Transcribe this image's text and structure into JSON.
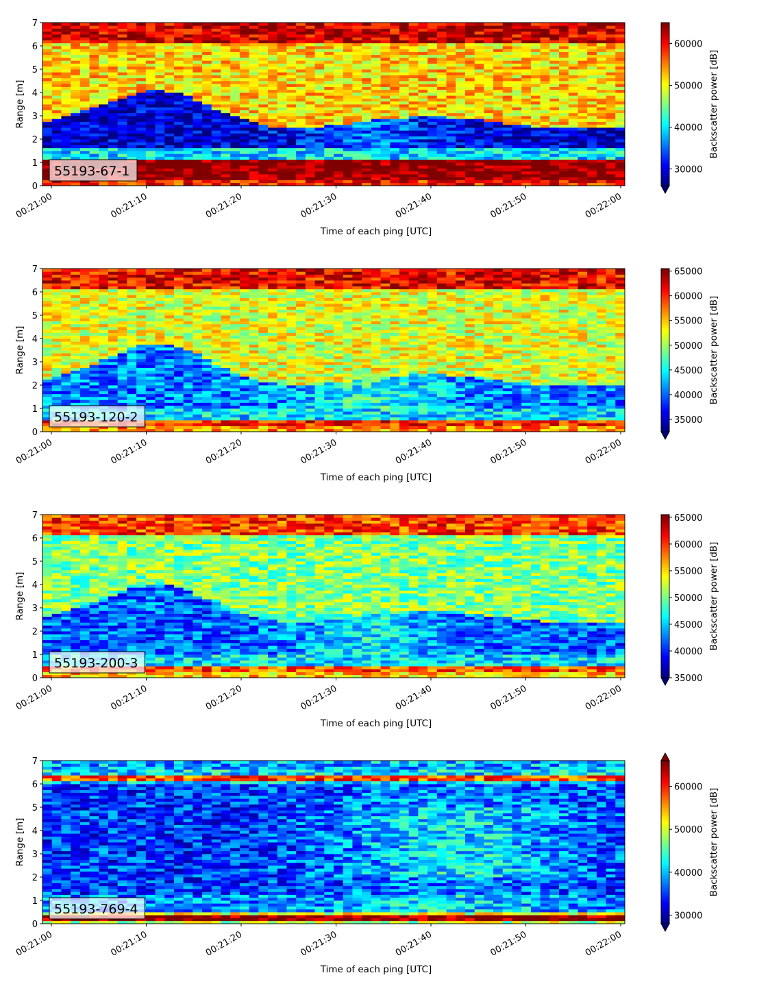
{
  "figure": {
    "colormap": "jet",
    "panel_count": 4
  },
  "chart_data": [
    {
      "type": "heatmap",
      "panel_label": "55193-67-1",
      "xlabel": "Time of each ping [UTC]",
      "ylabel": "Range [m]",
      "colorbar_label": "Backscatter power [dB]",
      "x_ticks": [
        "00:21:00",
        "00:21:10",
        "00:21:20",
        "00:21:30",
        "00:21:40",
        "00:21:50",
        "00:22:00"
      ],
      "y_ticks": [
        "0",
        "1",
        "2",
        "3",
        "4",
        "5",
        "6",
        "7"
      ],
      "ylim": [
        0,
        7
      ],
      "color_range": [
        26000,
        65000
      ],
      "colorbar_ticks": [
        "30000",
        "40000",
        "50000",
        "60000"
      ],
      "colorbar_extend": "min",
      "profile": "strong"
    },
    {
      "type": "heatmap",
      "panel_label": "55193-120-2",
      "xlabel": "Time of each ping [UTC]",
      "ylabel": "Range [m]",
      "colorbar_label": "Backscatter power [dB]",
      "x_ticks": [
        "00:21:00",
        "00:21:10",
        "00:21:20",
        "00:21:30",
        "00:21:40",
        "00:21:50",
        "00:22:00"
      ],
      "y_ticks": [
        "0",
        "1",
        "2",
        "3",
        "4",
        "5",
        "6",
        "7"
      ],
      "ylim": [
        0,
        7
      ],
      "color_range": [
        32500,
        65500
      ],
      "colorbar_ticks": [
        "35000",
        "40000",
        "45000",
        "50000",
        "55000",
        "60000",
        "65000"
      ],
      "colorbar_extend": "min",
      "profile": "medium"
    },
    {
      "type": "heatmap",
      "panel_label": "55193-200-3",
      "xlabel": "Time of each ping [UTC]",
      "ylabel": "Range [m]",
      "colorbar_label": "Backscatter power [dB]",
      "x_ticks": [
        "00:21:00",
        "00:21:10",
        "00:21:20",
        "00:21:30",
        "00:21:40",
        "00:21:50",
        "00:22:00"
      ],
      "y_ticks": [
        "0",
        "1",
        "2",
        "3",
        "4",
        "5",
        "6",
        "7"
      ],
      "ylim": [
        0,
        7
      ],
      "color_range": [
        35000,
        65500
      ],
      "colorbar_ticks": [
        "35000",
        "40000",
        "45000",
        "50000",
        "55000",
        "60000",
        "65000"
      ],
      "colorbar_extend": "min",
      "profile": "mild"
    },
    {
      "type": "heatmap",
      "panel_label": "55193-769-4",
      "xlabel": "Time of each ping [UTC]",
      "ylabel": "Range [m]",
      "colorbar_label": "Backscatter power [dB]",
      "x_ticks": [
        "00:21:00",
        "00:21:10",
        "00:21:20",
        "00:21:30",
        "00:21:40",
        "00:21:50",
        "00:22:00"
      ],
      "y_ticks": [
        "0",
        "1",
        "2",
        "3",
        "4",
        "5",
        "6",
        "7"
      ],
      "ylim": [
        0,
        7
      ],
      "color_range": [
        28000,
        66000
      ],
      "colorbar_ticks": [
        "30000",
        "40000",
        "50000",
        "60000"
      ],
      "colorbar_extend": "both",
      "profile": "weak"
    }
  ]
}
